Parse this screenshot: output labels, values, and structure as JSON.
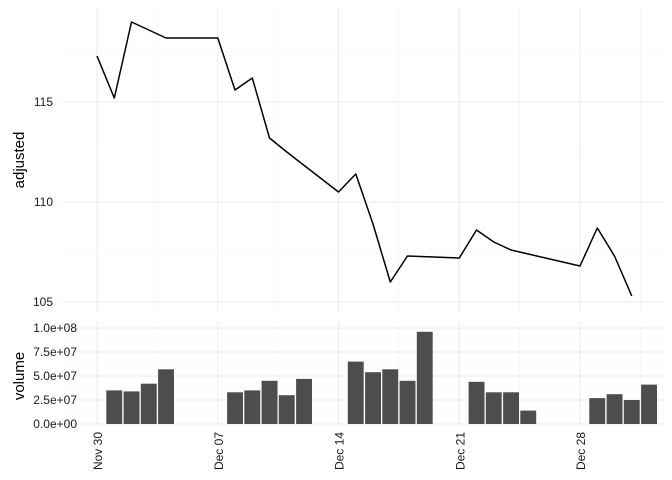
{
  "chart_data": [
    {
      "type": "line",
      "ylabel": "adjusted",
      "xlabel": "",
      "ylim": [
        104.5,
        119.7
      ],
      "yticks": [
        105,
        110,
        115
      ],
      "grid": true,
      "legend": "none",
      "series": [
        {
          "x": [
            "2015-11-30",
            "2015-12-01",
            "2015-12-02",
            "2015-12-03",
            "2015-12-04",
            "2015-12-07",
            "2015-12-08",
            "2015-12-09",
            "2015-12-10",
            "2015-12-11",
            "2015-12-14",
            "2015-12-15",
            "2015-12-16",
            "2015-12-17",
            "2015-12-18",
            "2015-12-21",
            "2015-12-22",
            "2015-12-23",
            "2015-12-24",
            "2015-12-28",
            "2015-12-29",
            "2015-12-30",
            "2015-12-31"
          ],
          "values": [
            117.3,
            115.2,
            119.0,
            118.6,
            118.2,
            118.2,
            115.6,
            116.2,
            113.2,
            112.5,
            110.5,
            111.4,
            108.9,
            106.0,
            107.3,
            107.2,
            108.6,
            108.0,
            107.6,
            106.8,
            108.7,
            107.3,
            105.3
          ]
        }
      ]
    },
    {
      "type": "bar",
      "ylabel": "volume",
      "xlabel": "",
      "ylim": [
        0,
        100000000
      ],
      "ytick_labels": [
        "0.0e+00",
        "2.5e+07",
        "5.0e+07",
        "7.5e+07",
        "1.0e+08"
      ],
      "yticks": [
        0,
        25000000,
        50000000,
        75000000,
        100000000
      ],
      "xtick_labels": [
        "Nov 30",
        "Dec 07",
        "Dec 14",
        "Dec 21",
        "Dec 28"
      ],
      "xticks": [
        "2015-11-30",
        "2015-12-07",
        "2015-12-14",
        "2015-12-21",
        "2015-12-28"
      ],
      "grid": true,
      "legend": "none",
      "bar_color": "#4d4d4d",
      "series": [
        {
          "x": [
            "2015-12-01",
            "2015-12-02",
            "2015-12-03",
            "2015-12-04",
            "2015-12-08",
            "2015-12-09",
            "2015-12-10",
            "2015-12-11",
            "2015-12-12",
            "2015-12-15",
            "2015-12-16",
            "2015-12-17",
            "2015-12-18",
            "2015-12-19",
            "2015-12-22",
            "2015-12-23",
            "2015-12-24",
            "2015-12-25",
            "2015-12-29",
            "2015-12-30",
            "2015-12-31",
            "2016-01-01"
          ],
          "values": [
            35000000,
            34000000,
            42000000,
            57000000,
            33000000,
            35000000,
            45000000,
            30000000,
            47000000,
            65000000,
            54000000,
            57000000,
            45000000,
            96000000,
            44000000,
            33000000,
            33000000,
            14000000,
            27000000,
            31000000,
            25000000,
            41000000
          ]
        }
      ]
    }
  ]
}
